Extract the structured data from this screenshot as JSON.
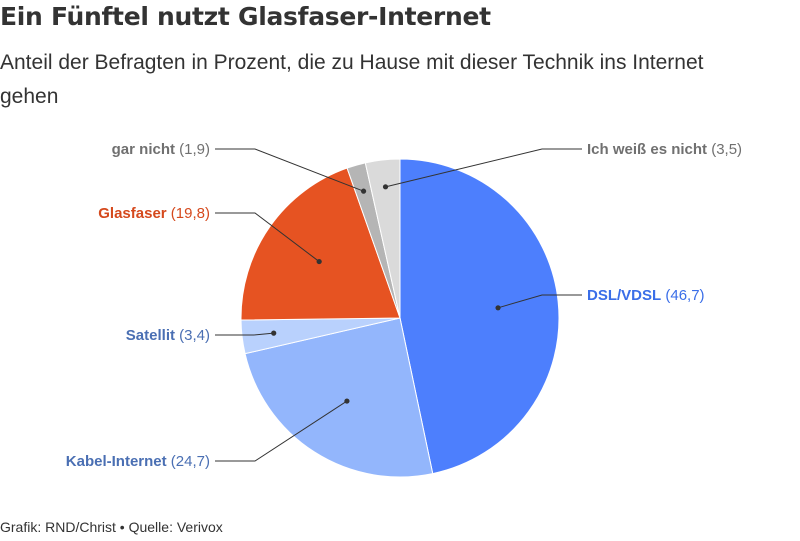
{
  "title": "Ein Fünftel nutzt Glasfaser-Internet",
  "subtitle": "Anteil der Befragten in Prozent, die zu Hause mit dieser Technik ins Internet gehen",
  "footer": {
    "grafik": "Grafik: RND/Christ",
    "separator": "•",
    "quelle": "Quelle: Verivox"
  },
  "chart_data": {
    "type": "pie",
    "title": "Ein Fünftel nutzt Glasfaser-Internet",
    "subtitle": "Anteil der Befragten in Prozent, die zu Hause mit dieser Technik ins Internet gehen",
    "unit": "Prozent",
    "slices": [
      {
        "label": "DSL/VDSL",
        "value": 46.7,
        "value_text": "(46,7)",
        "color": "#4d7ffd",
        "label_color": "#3a6ee8"
      },
      {
        "label": "Kabel-Internet",
        "value": 24.7,
        "value_text": "(24,7)",
        "color": "#93b6fc",
        "label_color": "#4a6fb3"
      },
      {
        "label": "Satellit",
        "value": 3.4,
        "value_text": "(3,4)",
        "color": "#b9d1fd",
        "label_color": "#4a6fb3"
      },
      {
        "label": "Glasfaser",
        "value": 19.8,
        "value_text": "(19,8)",
        "color": "#e65322",
        "label_color": "#d5491d"
      },
      {
        "label": "gar nicht",
        "value": 1.9,
        "value_text": "(1,9)",
        "color": "#b5b5b5",
        "label_color": "#707070"
      },
      {
        "label": "Ich weiß es nicht",
        "value": 3.5,
        "value_text": "(3,5)",
        "color": "#dadada",
        "label_color": "#707070"
      }
    ]
  }
}
